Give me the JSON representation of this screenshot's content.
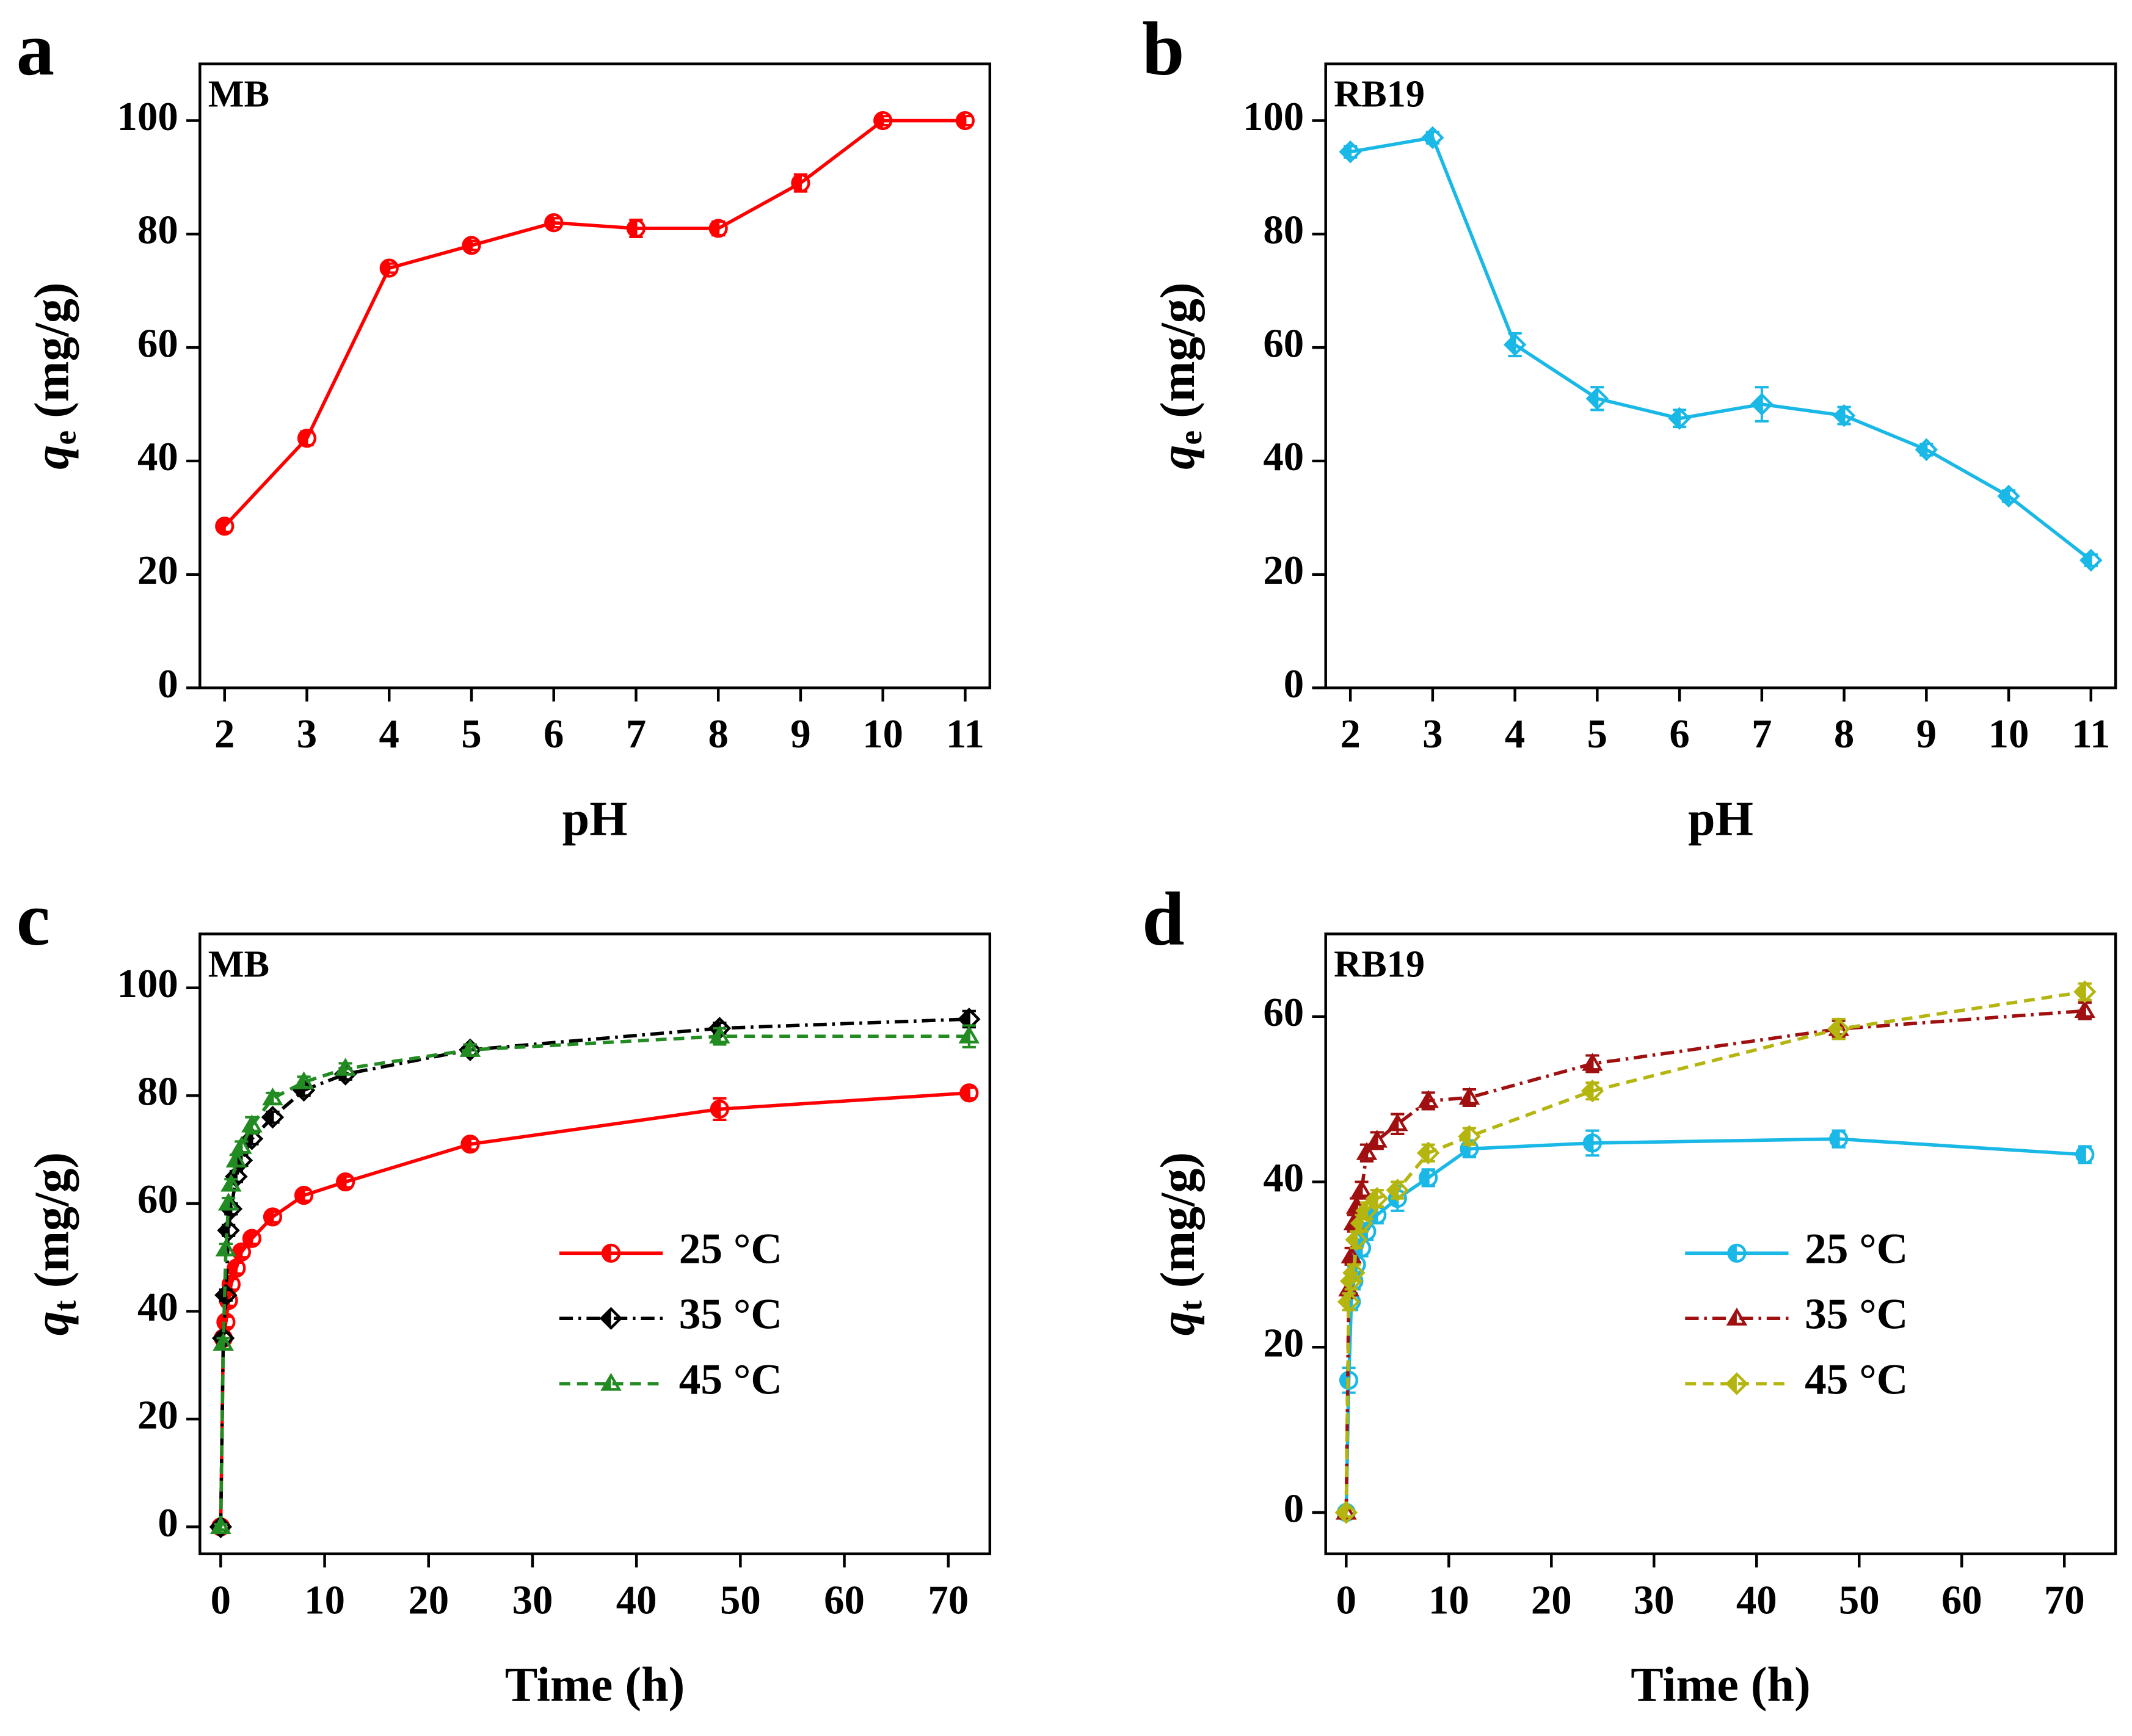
{
  "chart_data": [
    {
      "type": "line",
      "label": "a",
      "annotation": "MB",
      "xlabel": "pH",
      "ylabel_symbol": "q",
      "ylabel_subscript": "e",
      "ylabel_unit": "(mg/g)",
      "x": [
        2,
        3,
        4,
        5,
        6,
        7,
        8,
        9,
        10,
        11
      ],
      "values": [
        28.5,
        44,
        74,
        78,
        82,
        81,
        81,
        89,
        100,
        100
      ],
      "errors": [
        1,
        1.2,
        0.8,
        0.8,
        0.8,
        1.5,
        1.2,
        1.5,
        0.8,
        0.8
      ],
      "color": "#ff0000",
      "marker": "circle",
      "xlim": [
        1.7,
        11.3
      ],
      "ylim": [
        0,
        110
      ],
      "xticks": [
        2,
        3,
        4,
        5,
        6,
        7,
        8,
        9,
        10,
        11
      ],
      "yticks": [
        0,
        20,
        40,
        60,
        80,
        100
      ]
    },
    {
      "type": "line",
      "label": "b",
      "annotation": "RB19",
      "xlabel": "pH",
      "ylabel_symbol": "q",
      "ylabel_subscript": "e",
      "ylabel_unit": "(mg/g)",
      "x": [
        2,
        3,
        4,
        5,
        6,
        7,
        8,
        9,
        10,
        11
      ],
      "values": [
        94.5,
        97,
        60.5,
        51,
        47.5,
        50,
        48,
        42,
        33.8,
        22.5
      ],
      "errors": [
        1,
        1,
        2,
        2,
        1.5,
        3,
        1.5,
        1,
        1,
        1
      ],
      "color": "#1ab8e6",
      "marker": "diamond",
      "xlim": [
        1.7,
        11.3
      ],
      "ylim": [
        0,
        110
      ],
      "xticks": [
        2,
        3,
        4,
        5,
        6,
        7,
        8,
        9,
        10,
        11
      ],
      "yticks": [
        0,
        20,
        40,
        60,
        80,
        100
      ]
    },
    {
      "type": "line",
      "label": "c",
      "annotation": "MB",
      "xlabel": "Time (h)",
      "ylabel_symbol": "q",
      "ylabel_subscript": "t",
      "ylabel_unit": "(mg/g)",
      "x": [
        0,
        0.25,
        0.5,
        0.75,
        1,
        1.5,
        2,
        3,
        5,
        8,
        12,
        24,
        48,
        72
      ],
      "series": [
        {
          "name": "25 °C",
          "color": "#ff0000",
          "marker": "circle",
          "dash": "solid",
          "values": [
            0,
            35,
            38,
            42,
            45,
            48,
            51,
            53.5,
            57.5,
            61.5,
            64,
            71,
            77.5,
            80.5
          ],
          "errors": [
            0.5,
            1,
            1,
            1,
            1,
            1,
            1,
            1,
            1,
            1,
            1,
            1,
            2,
            1
          ]
        },
        {
          "name": "35 °C",
          "color": "#000000",
          "marker": "diamond",
          "dash": "dashdot",
          "values": [
            0,
            35,
            43,
            55,
            59,
            65,
            68,
            72,
            76,
            81,
            84,
            88.5,
            92.5,
            94.2
          ],
          "errors": [
            0.5,
            1,
            1,
            1,
            1,
            1,
            1,
            1,
            1,
            1,
            1,
            1,
            1,
            1.5
          ]
        },
        {
          "name": "45 °C",
          "color": "#228b22",
          "marker": "triangle",
          "dash": "dash",
          "values": [
            0,
            34,
            51.5,
            60,
            63.5,
            68,
            70.5,
            74.5,
            79.5,
            82.5,
            85,
            88.5,
            91,
            91
          ],
          "errors": [
            0.5,
            1,
            1,
            1,
            1,
            1,
            1,
            1.5,
            1,
            1,
            1,
            1,
            1.5,
            2
          ]
        }
      ],
      "legend": "center right",
      "xlim": [
        -2,
        74
      ],
      "ylim": [
        -5,
        110
      ],
      "xticks": [
        0,
        10,
        20,
        30,
        40,
        50,
        60,
        70
      ],
      "yticks": [
        0,
        20,
        40,
        60,
        80,
        100
      ]
    },
    {
      "type": "line",
      "label": "d",
      "annotation": "RB19",
      "xlabel": "Time (h)",
      "ylabel_symbol": "q",
      "ylabel_subscript": "t",
      "ylabel_unit": "(mg/g)",
      "x": [
        0,
        0.25,
        0.5,
        0.75,
        1,
        1.5,
        2,
        3,
        5,
        8,
        12,
        24,
        48,
        72
      ],
      "series": [
        {
          "name": "25 °C",
          "color": "#1ab8e6",
          "marker": "circle",
          "dash": "solid",
          "values": [
            0,
            16,
            25.5,
            28,
            30,
            32,
            34,
            36,
            38,
            40.5,
            44,
            44.7,
            45.2,
            43.3
          ],
          "errors": [
            0.5,
            1.5,
            1,
            1,
            1,
            1,
            1,
            1,
            1.5,
            1,
            1,
            1.5,
            1,
            1
          ]
        },
        {
          "name": "35 °C",
          "color": "#a01010",
          "marker": "triangle",
          "dash": "dashdot",
          "values": [
            0,
            27,
            31,
            35,
            37,
            39,
            43.5,
            45,
            47,
            49.8,
            50.2,
            54.3,
            58.5,
            60.7
          ],
          "errors": [
            0.5,
            1,
            1,
            1,
            1,
            1,
            1,
            1,
            1.2,
            1,
            1,
            1,
            1,
            1
          ]
        },
        {
          "name": "45 °C",
          "color": "#b5b510",
          "marker": "diamond",
          "dash": "dash",
          "values": [
            0,
            25.5,
            28,
            29,
            33,
            35,
            36.5,
            38,
            39,
            43.5,
            45.5,
            51,
            58.5,
            63
          ],
          "errors": [
            0.5,
            1,
            1,
            1,
            1,
            1,
            1,
            1,
            1,
            1,
            1,
            1,
            1.2,
            1
          ]
        }
      ],
      "legend": "center right",
      "xlim": [
        -2,
        75
      ],
      "ylim": [
        -5,
        70
      ],
      "xticks": [
        0,
        10,
        20,
        30,
        40,
        50,
        60,
        70
      ],
      "yticks": [
        0,
        20,
        40,
        60
      ]
    }
  ]
}
